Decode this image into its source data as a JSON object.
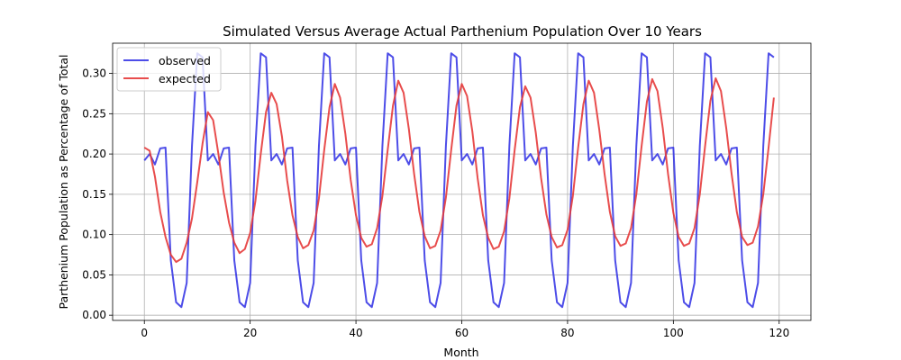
{
  "chart_data": {
    "type": "line",
    "title": "Simulated Versus Average Actual Parthenium Population Over 10 Years",
    "xlabel": "Month",
    "ylabel": "Parthenium Population as Percentage of Total",
    "xlim": [
      -6,
      126
    ],
    "ylim": [
      -0.0065,
      0.3375
    ],
    "x_ticks": [
      0,
      20,
      40,
      60,
      80,
      100,
      120
    ],
    "y_ticks": [
      0.0,
      0.05,
      0.1,
      0.15,
      0.2,
      0.25,
      0.3
    ],
    "grid": true,
    "legend_position": "upper-left",
    "series": [
      {
        "name": "observed",
        "color": "#3a3ae6",
        "x": [
          0,
          1,
          2,
          3,
          4,
          5,
          6,
          7,
          8,
          9,
          10,
          11,
          12,
          13,
          14,
          15,
          16,
          17,
          18,
          19,
          20,
          21,
          22,
          23,
          24,
          25,
          26,
          27,
          28,
          29,
          30,
          31,
          32,
          33,
          34,
          35,
          36,
          37,
          38,
          39,
          40,
          41,
          42,
          43,
          44,
          45,
          46,
          47,
          48,
          49,
          50,
          51,
          52,
          53,
          54,
          55,
          56,
          57,
          58,
          59,
          60,
          61,
          62,
          63,
          64,
          65,
          66,
          67,
          68,
          69,
          70,
          71,
          72,
          73,
          74,
          75,
          76,
          77,
          78,
          79,
          80,
          81,
          82,
          83,
          84,
          85,
          86,
          87,
          88,
          89,
          90,
          91,
          92,
          93,
          94,
          95,
          96,
          97,
          98,
          99,
          100,
          101,
          102,
          103,
          104,
          105,
          106,
          107,
          108,
          109,
          110,
          111,
          112,
          113,
          114,
          115,
          116,
          117,
          118,
          119
        ],
        "values": [
          0.192,
          0.2,
          0.187,
          0.207,
          0.208,
          0.068,
          0.016,
          0.01,
          0.04,
          0.21,
          0.325,
          0.32,
          0.192,
          0.2,
          0.187,
          0.207,
          0.208,
          0.068,
          0.016,
          0.01,
          0.04,
          0.21,
          0.325,
          0.32,
          0.192,
          0.2,
          0.187,
          0.207,
          0.208,
          0.068,
          0.016,
          0.01,
          0.04,
          0.21,
          0.325,
          0.32,
          0.192,
          0.2,
          0.187,
          0.207,
          0.208,
          0.068,
          0.016,
          0.01,
          0.04,
          0.21,
          0.325,
          0.32,
          0.192,
          0.2,
          0.187,
          0.207,
          0.208,
          0.068,
          0.016,
          0.01,
          0.04,
          0.21,
          0.325,
          0.32,
          0.192,
          0.2,
          0.187,
          0.207,
          0.208,
          0.068,
          0.016,
          0.01,
          0.04,
          0.21,
          0.325,
          0.32,
          0.192,
          0.2,
          0.187,
          0.207,
          0.208,
          0.068,
          0.016,
          0.01,
          0.04,
          0.21,
          0.325,
          0.32,
          0.192,
          0.2,
          0.187,
          0.207,
          0.208,
          0.068,
          0.016,
          0.01,
          0.04,
          0.21,
          0.325,
          0.32,
          0.192,
          0.2,
          0.187,
          0.207,
          0.208,
          0.068,
          0.016,
          0.01,
          0.04,
          0.21,
          0.325,
          0.32,
          0.192,
          0.2,
          0.187,
          0.207,
          0.208,
          0.068,
          0.016,
          0.01,
          0.04,
          0.21,
          0.325,
          0.32
        ]
      },
      {
        "name": "expected",
        "color": "#e63a3a",
        "x": [
          0,
          1,
          2,
          3,
          4,
          5,
          6,
          7,
          8,
          9,
          10,
          11,
          12,
          13,
          14,
          15,
          16,
          17,
          18,
          19,
          20,
          21,
          22,
          23,
          24,
          25,
          26,
          27,
          28,
          29,
          30,
          31,
          32,
          33,
          34,
          35,
          36,
          37,
          38,
          39,
          40,
          41,
          42,
          43,
          44,
          45,
          46,
          47,
          48,
          49,
          50,
          51,
          52,
          53,
          54,
          55,
          56,
          57,
          58,
          59,
          60,
          61,
          62,
          63,
          64,
          65,
          66,
          67,
          68,
          69,
          70,
          71,
          72,
          73,
          74,
          75,
          76,
          77,
          78,
          79,
          80,
          81,
          82,
          83,
          84,
          85,
          86,
          87,
          88,
          89,
          90,
          91,
          92,
          93,
          94,
          95,
          96,
          97,
          98,
          99,
          100,
          101,
          102,
          103,
          104,
          105,
          106,
          107,
          108,
          109,
          110,
          111,
          112,
          113,
          114,
          115,
          116,
          117,
          118,
          119
        ],
        "values": [
          0.208,
          0.204,
          0.172,
          0.128,
          0.097,
          0.075,
          0.066,
          0.07,
          0.09,
          0.12,
          0.165,
          0.213,
          0.252,
          0.242,
          0.2,
          0.152,
          0.115,
          0.09,
          0.077,
          0.082,
          0.102,
          0.142,
          0.2,
          0.252,
          0.276,
          0.262,
          0.222,
          0.167,
          0.124,
          0.097,
          0.083,
          0.087,
          0.105,
          0.145,
          0.205,
          0.258,
          0.287,
          0.27,
          0.225,
          0.168,
          0.124,
          0.096,
          0.085,
          0.088,
          0.108,
          0.148,
          0.205,
          0.26,
          0.291,
          0.276,
          0.231,
          0.175,
          0.128,
          0.098,
          0.083,
          0.086,
          0.105,
          0.146,
          0.205,
          0.26,
          0.287,
          0.272,
          0.228,
          0.17,
          0.124,
          0.096,
          0.082,
          0.085,
          0.104,
          0.145,
          0.205,
          0.258,
          0.284,
          0.27,
          0.226,
          0.17,
          0.125,
          0.097,
          0.084,
          0.087,
          0.106,
          0.148,
          0.208,
          0.262,
          0.291,
          0.276,
          0.23,
          0.175,
          0.128,
          0.098,
          0.086,
          0.089,
          0.108,
          0.15,
          0.21,
          0.265,
          0.293,
          0.278,
          0.232,
          0.175,
          0.127,
          0.097,
          0.086,
          0.089,
          0.108,
          0.15,
          0.21,
          0.266,
          0.294,
          0.278,
          0.232,
          0.176,
          0.128,
          0.097,
          0.087,
          0.09,
          0.11,
          0.15,
          0.208,
          0.27
        ]
      }
    ]
  }
}
